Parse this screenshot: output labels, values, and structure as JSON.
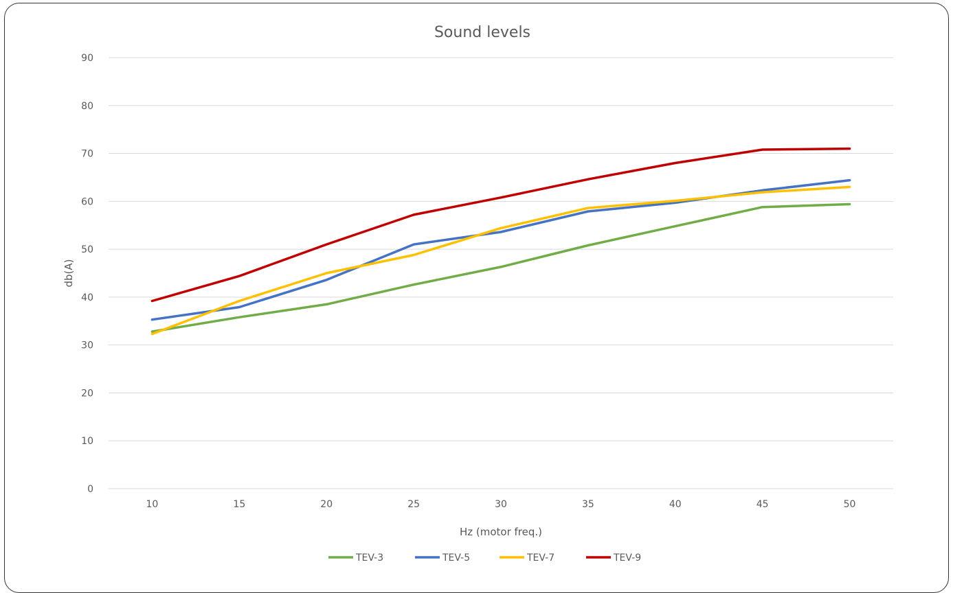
{
  "chart_data": {
    "type": "line",
    "title": "Sound levels",
    "xlabel": "Hz (motor freq.)",
    "ylabel": "db(A)",
    "x": [
      10,
      15,
      20,
      25,
      30,
      35,
      40,
      45,
      50
    ],
    "ylim": [
      0,
      90
    ],
    "yticks": [
      0,
      10,
      20,
      30,
      40,
      50,
      60,
      70,
      80,
      90
    ],
    "grid": true,
    "legend_position": "bottom",
    "series": [
      {
        "name": "TEV-3",
        "color": "#70ad47",
        "values": [
          32.8,
          35.8,
          38.5,
          42.6,
          46.3,
          50.8,
          54.8,
          58.8,
          59.4
        ]
      },
      {
        "name": "TEV-5",
        "color": "#4472c4",
        "values": [
          35.3,
          37.9,
          43.6,
          51.0,
          53.6,
          57.9,
          59.7,
          62.3,
          64.4
        ]
      },
      {
        "name": "TEV-7",
        "color": "#ffc000",
        "values": [
          32.3,
          39.2,
          45.0,
          48.8,
          54.4,
          58.6,
          60.1,
          61.9,
          63.0
        ]
      },
      {
        "name": "TEV-9",
        "color": "#c00000",
        "values": [
          39.2,
          44.4,
          51.0,
          57.2,
          60.8,
          64.6,
          68.0,
          70.8,
          71.0
        ]
      }
    ]
  }
}
